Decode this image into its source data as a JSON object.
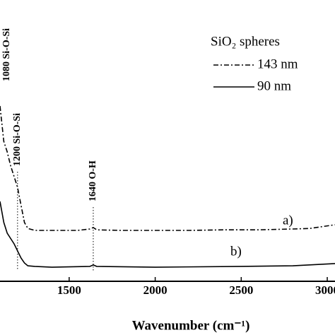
{
  "chart_data": {
    "type": "line",
    "x_label": "Wavenumber (cm⁻¹)",
    "legend_title": "SiO₂ spheres",
    "legend": "upper right",
    "xlim": [
      1098,
      3045
    ],
    "ylim": [
      0,
      100
    ],
    "xticks": [
      1500,
      2000,
      2500,
      3000
    ],
    "annotations": [
      {
        "x": 1080,
        "label": "1080 Si-O-Si"
      },
      {
        "x": 1200,
        "label": "1200 Si-O-Si"
      },
      {
        "x": 1640,
        "label": "1640 O-H"
      }
    ],
    "series": [
      {
        "name": "143 nm",
        "label": "a)",
        "color": "#000000",
        "dash": "dashdot",
        "x": [
          1098,
          1120,
          1140,
          1160,
          1180,
          1200,
          1220,
          1240,
          1260,
          1300,
          1400,
          1550,
          1620,
          1640,
          1660,
          1800,
          2000,
          2200,
          2400,
          2600,
          2800,
          2900,
          3045
        ],
        "values": [
          62.3,
          49.7,
          46,
          41,
          37.2,
          33.4,
          27.1,
          20.9,
          18.8,
          18.1,
          18.1,
          18.1,
          18.6,
          19.1,
          18.3,
          18.1,
          18.1,
          18.1,
          18.3,
          18.3,
          18.6,
          18.8,
          20.1
        ]
      },
      {
        "name": "90 nm",
        "label": "b)",
        "color": "#000000",
        "dash": "solid",
        "x": [
          1098,
          1120,
          1140,
          1180,
          1220,
          1240,
          1260,
          1300,
          1400,
          1620,
          1640,
          1660,
          2000,
          2500,
          2800,
          3045
        ],
        "values": [
          28.4,
          20.9,
          17.1,
          13.3,
          8.3,
          6.5,
          5.5,
          5.3,
          5.0,
          5.3,
          5.8,
          5.3,
          5.0,
          5.3,
          5.5,
          6.3
        ]
      }
    ]
  }
}
